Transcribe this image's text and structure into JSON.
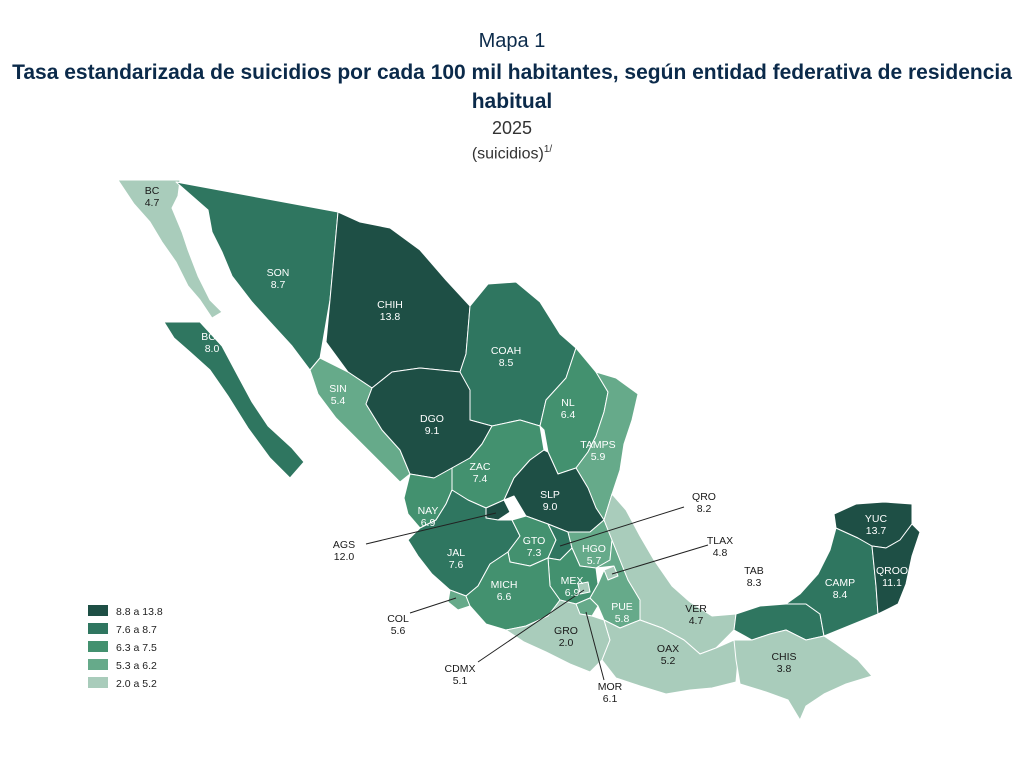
{
  "header": {
    "map_number": "Mapa 1",
    "title": "Tasa estandarizada de suicidios por cada 100 mil habitantes, según entidad federativa de residencia habitual",
    "year": "2025",
    "unit": "(suicidios)",
    "note_ref": "1/"
  },
  "colors": {
    "c1": "#1e4f45",
    "c2": "#2f7660",
    "c3": "#43916f",
    "c4": "#66aa8a",
    "c5": "#a9ccbb"
  },
  "legend": [
    {
      "label": "8.8 a 13.8",
      "class": "c1"
    },
    {
      "label": "7.6 a 8.7",
      "class": "c2"
    },
    {
      "label": "6.3 a 7.5",
      "class": "c3"
    },
    {
      "label": "5.3 a 6.2",
      "class": "c4"
    },
    {
      "label": "2.0 a 5.2",
      "class": "c5"
    }
  ],
  "states": [
    {
      "code": "BC",
      "value": "4.7",
      "class": "c5"
    },
    {
      "code": "SON",
      "value": "8.7",
      "class": "c2"
    },
    {
      "code": "CHIH",
      "value": "13.8",
      "class": "c1"
    },
    {
      "code": "BCS",
      "value": "8.0",
      "class": "c2"
    },
    {
      "code": "COAH",
      "value": "8.5",
      "class": "c2"
    },
    {
      "code": "SIN",
      "value": "5.4",
      "class": "c4"
    },
    {
      "code": "NL",
      "value": "6.4",
      "class": "c3"
    },
    {
      "code": "DGO",
      "value": "9.1",
      "class": "c1"
    },
    {
      "code": "TAMPS",
      "value": "5.9",
      "class": "c4"
    },
    {
      "code": "ZAC",
      "value": "7.4",
      "class": "c3"
    },
    {
      "code": "SLP",
      "value": "9.0",
      "class": "c1"
    },
    {
      "code": "NAY",
      "value": "6.9",
      "class": "c3"
    },
    {
      "code": "AGS",
      "value": "12.0",
      "class": "c1"
    },
    {
      "code": "JAL",
      "value": "7.6",
      "class": "c2"
    },
    {
      "code": "GTO",
      "value": "7.3",
      "class": "c3"
    },
    {
      "code": "QRO",
      "value": "8.2",
      "class": "c2"
    },
    {
      "code": "HGO",
      "value": "5.7",
      "class": "c4"
    },
    {
      "code": "TLAX",
      "value": "4.8",
      "class": "c5"
    },
    {
      "code": "MEX",
      "value": "6.9",
      "class": "c3"
    },
    {
      "code": "COL",
      "value": "5.6",
      "class": "c4"
    },
    {
      "code": "MICH",
      "value": "6.6",
      "class": "c3"
    },
    {
      "code": "PUE",
      "value": "5.8",
      "class": "c4"
    },
    {
      "code": "VER",
      "value": "4.7",
      "class": "c5"
    },
    {
      "code": "CDMX",
      "value": "5.1",
      "class": "c5"
    },
    {
      "code": "GRO",
      "value": "2.0",
      "class": "c5"
    },
    {
      "code": "OAX",
      "value": "5.2",
      "class": "c5"
    },
    {
      "code": "MOR",
      "value": "6.1",
      "class": "c4"
    },
    {
      "code": "TAB",
      "value": "8.3",
      "class": "c2"
    },
    {
      "code": "CHIS",
      "value": "3.8",
      "class": "c5"
    },
    {
      "code": "CAMP",
      "value": "8.4",
      "class": "c2"
    },
    {
      "code": "YUC",
      "value": "13.7",
      "class": "c1"
    },
    {
      "code": "QROO",
      "value": "11.1",
      "class": "c1"
    }
  ]
}
